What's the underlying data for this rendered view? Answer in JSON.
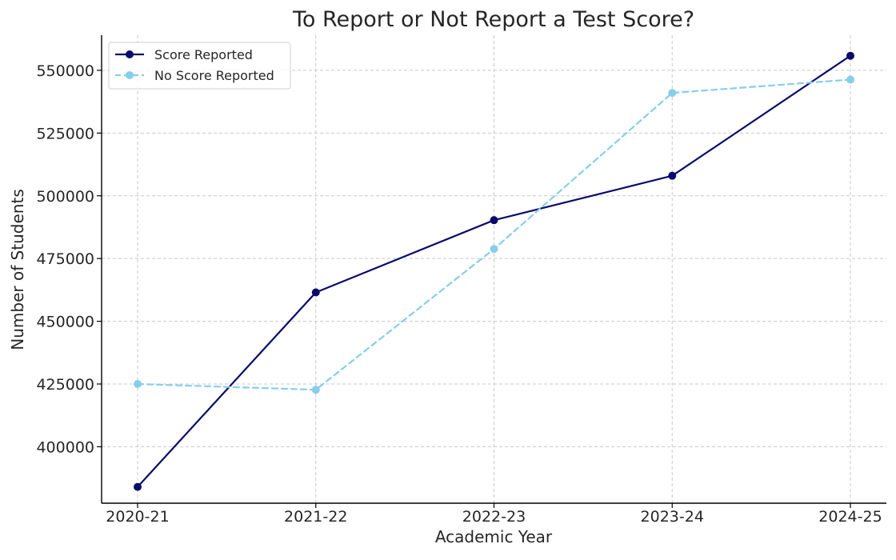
{
  "chart_data": {
    "type": "line",
    "title": "To Report or Not Report a Test Score?",
    "xlabel": "Academic Year",
    "ylabel": "Number of Students",
    "categories": [
      "2020-21",
      "2021-22",
      "2022-23",
      "2023-24",
      "2024-25"
    ],
    "ylim": [
      377500,
      564000
    ],
    "yticks": [
      400000,
      425000,
      450000,
      475000,
      500000,
      525000,
      550000
    ],
    "grid": true,
    "legend_position": "upper-left",
    "series": [
      {
        "name": "Score Reported",
        "values": [
          384000,
          461500,
          490300,
          508000,
          555800
        ],
        "color": "#0b0b6b",
        "line_style": "solid",
        "marker": "circle"
      },
      {
        "name": "No Score Reported",
        "values": [
          425000,
          422700,
          478800,
          541000,
          546300
        ],
        "color": "#87ceeb",
        "line_style": "dashed",
        "marker": "circle"
      }
    ]
  }
}
